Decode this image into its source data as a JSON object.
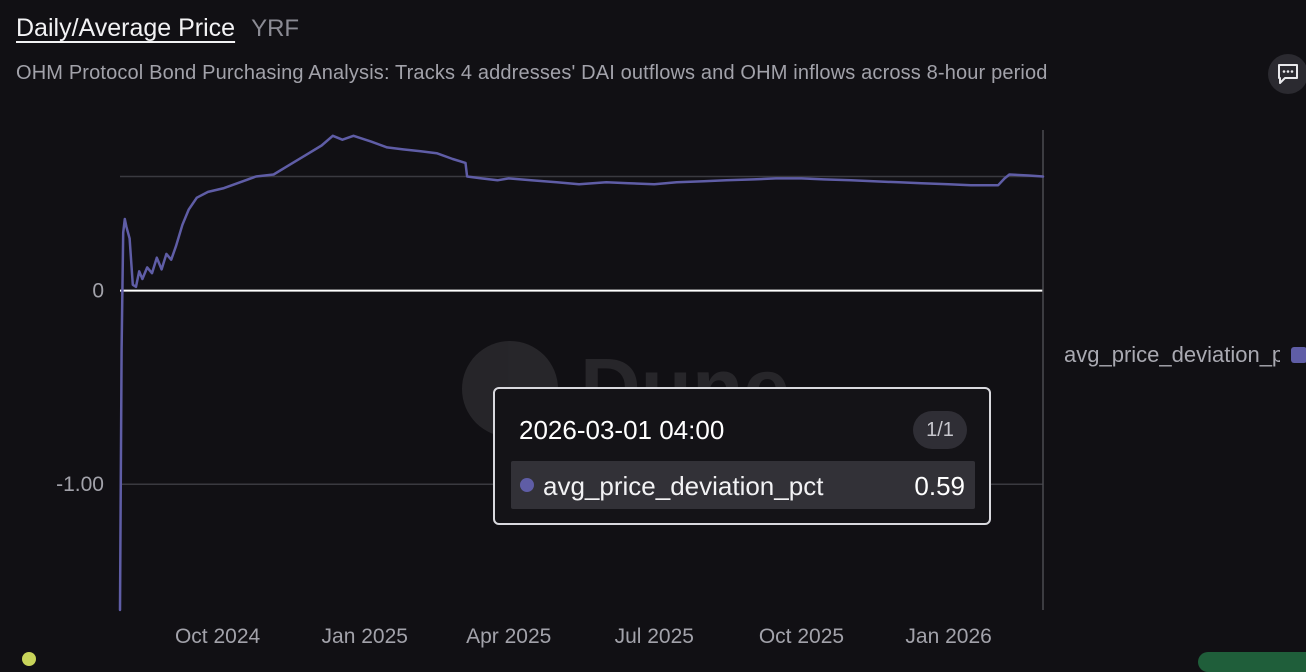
{
  "header": {
    "title": "Daily/Average Price",
    "owner": "YRF",
    "subtitle": "OHM Protocol Bond Purchasing Analysis: Tracks 4 addresses' DAI outflows and OHM inflows across 8-hour period"
  },
  "icons": {
    "comment": "speech-bubble-icon",
    "watermark": "dune-logo"
  },
  "watermark_text": "Dune",
  "colors": {
    "series": "#5f5da6",
    "zero_line": "#ffffff",
    "grid": "#3a3a40",
    "background": "#111014"
  },
  "tooltip": {
    "date": "2026-03-01 04:00",
    "count": "1/1",
    "series_name": "avg_price_deviation_pct",
    "value": "0.59"
  },
  "chart_data": {
    "type": "line",
    "title": "Daily/Average Price",
    "xlabel": "",
    "ylabel": "",
    "ylim": [
      -1.65,
      0.83
    ],
    "y_gridlines": [
      -1.0,
      0.0,
      0.59
    ],
    "y_tick_labels": [
      {
        "value": 0,
        "label": "0"
      },
      {
        "value": -1.0,
        "label": "-1.00"
      }
    ],
    "x_range": [
      "2024-08-01",
      "2026-03-01"
    ],
    "x_tick_labels": [
      {
        "date": "2024-10-01",
        "label": "Oct 2024"
      },
      {
        "date": "2025-01-01",
        "label": "Jan 2025"
      },
      {
        "date": "2025-04-01",
        "label": "Apr 2025"
      },
      {
        "date": "2025-07-01",
        "label": "Jul 2025"
      },
      {
        "date": "2025-10-01",
        "label": "Oct 2025"
      },
      {
        "date": "2026-01-01",
        "label": "Jan 2026"
      }
    ],
    "legend": "right",
    "series": [
      {
        "name": "avg_price_deviation_pct",
        "points": [
          [
            "2024-08-01",
            -1.65
          ],
          [
            "2024-08-02",
            -0.3
          ],
          [
            "2024-08-03",
            0.3
          ],
          [
            "2024-08-04",
            0.37
          ],
          [
            "2024-08-05",
            0.33
          ],
          [
            "2024-08-07",
            0.27
          ],
          [
            "2024-08-09",
            0.03
          ],
          [
            "2024-08-11",
            0.02
          ],
          [
            "2024-08-13",
            0.1
          ],
          [
            "2024-08-15",
            0.06
          ],
          [
            "2024-08-18",
            0.12
          ],
          [
            "2024-08-21",
            0.09
          ],
          [
            "2024-08-24",
            0.17
          ],
          [
            "2024-08-27",
            0.11
          ],
          [
            "2024-08-30",
            0.19
          ],
          [
            "2024-09-02",
            0.16
          ],
          [
            "2024-09-05",
            0.23
          ],
          [
            "2024-09-09",
            0.34
          ],
          [
            "2024-09-13",
            0.42
          ],
          [
            "2024-09-18",
            0.48
          ],
          [
            "2024-09-25",
            0.51
          ],
          [
            "2024-10-05",
            0.53
          ],
          [
            "2024-10-15",
            0.56
          ],
          [
            "2024-10-25",
            0.59
          ],
          [
            "2024-11-05",
            0.6
          ],
          [
            "2024-11-15",
            0.65
          ],
          [
            "2024-11-25",
            0.7
          ],
          [
            "2024-12-05",
            0.75
          ],
          [
            "2024-12-12",
            0.8
          ],
          [
            "2024-12-18",
            0.78
          ],
          [
            "2024-12-25",
            0.8
          ],
          [
            "2025-01-05",
            0.77
          ],
          [
            "2025-01-15",
            0.74
          ],
          [
            "2025-01-25",
            0.73
          ],
          [
            "2025-02-05",
            0.72
          ],
          [
            "2025-02-15",
            0.71
          ],
          [
            "2025-02-25",
            0.68
          ],
          [
            "2025-03-05",
            0.66
          ],
          [
            "2025-03-06",
            0.59
          ],
          [
            "2025-03-15",
            0.58
          ],
          [
            "2025-03-25",
            0.57
          ],
          [
            "2025-04-01",
            0.58
          ],
          [
            "2025-04-15",
            0.57
          ],
          [
            "2025-05-01",
            0.56
          ],
          [
            "2025-05-15",
            0.55
          ],
          [
            "2025-06-01",
            0.56
          ],
          [
            "2025-06-15",
            0.555
          ],
          [
            "2025-07-01",
            0.55
          ],
          [
            "2025-07-15",
            0.56
          ],
          [
            "2025-08-01",
            0.565
          ],
          [
            "2025-08-15",
            0.57
          ],
          [
            "2025-09-01",
            0.575
          ],
          [
            "2025-09-15",
            0.58
          ],
          [
            "2025-10-01",
            0.58
          ],
          [
            "2025-10-15",
            0.575
          ],
          [
            "2025-11-01",
            0.57
          ],
          [
            "2025-11-15",
            0.565
          ],
          [
            "2025-12-01",
            0.56
          ],
          [
            "2025-12-15",
            0.555
          ],
          [
            "2026-01-01",
            0.55
          ],
          [
            "2026-01-15",
            0.545
          ],
          [
            "2026-02-01",
            0.545
          ],
          [
            "2026-02-05",
            0.58
          ],
          [
            "2026-02-08",
            0.6
          ],
          [
            "2026-02-20",
            0.595
          ],
          [
            "2026-03-01",
            0.59
          ]
        ]
      }
    ]
  }
}
